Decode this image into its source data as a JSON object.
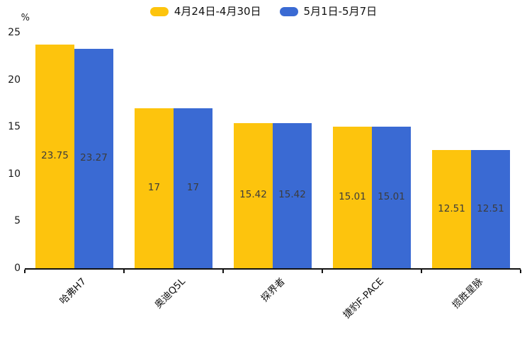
{
  "chart_data": {
    "type": "bar",
    "title": "",
    "categories": [
      "哈弗H7",
      "奥迪Q5L",
      "探界者",
      "捷豹F-PACE",
      "揽胜星脉"
    ],
    "series": [
      {
        "name": "4月24日-4月30日",
        "color": "#FDC40D",
        "values": [
          23.75,
          17,
          15.42,
          15.01,
          12.51
        ]
      },
      {
        "name": "5月1日-5月7日",
        "color": "#3A6AD3",
        "values": [
          23.27,
          17,
          15.42,
          15.01,
          12.51
        ]
      }
    ],
    "xlabel": "",
    "ylabel": "%",
    "yticks": [
      0,
      5,
      10,
      15,
      20,
      25
    ],
    "ylim": [
      0,
      25
    ],
    "grid": false,
    "legend_position": "top",
    "bar_labels_shown": true,
    "bar_label_color": "#3c3c3c",
    "axis_color": "#111111"
  }
}
